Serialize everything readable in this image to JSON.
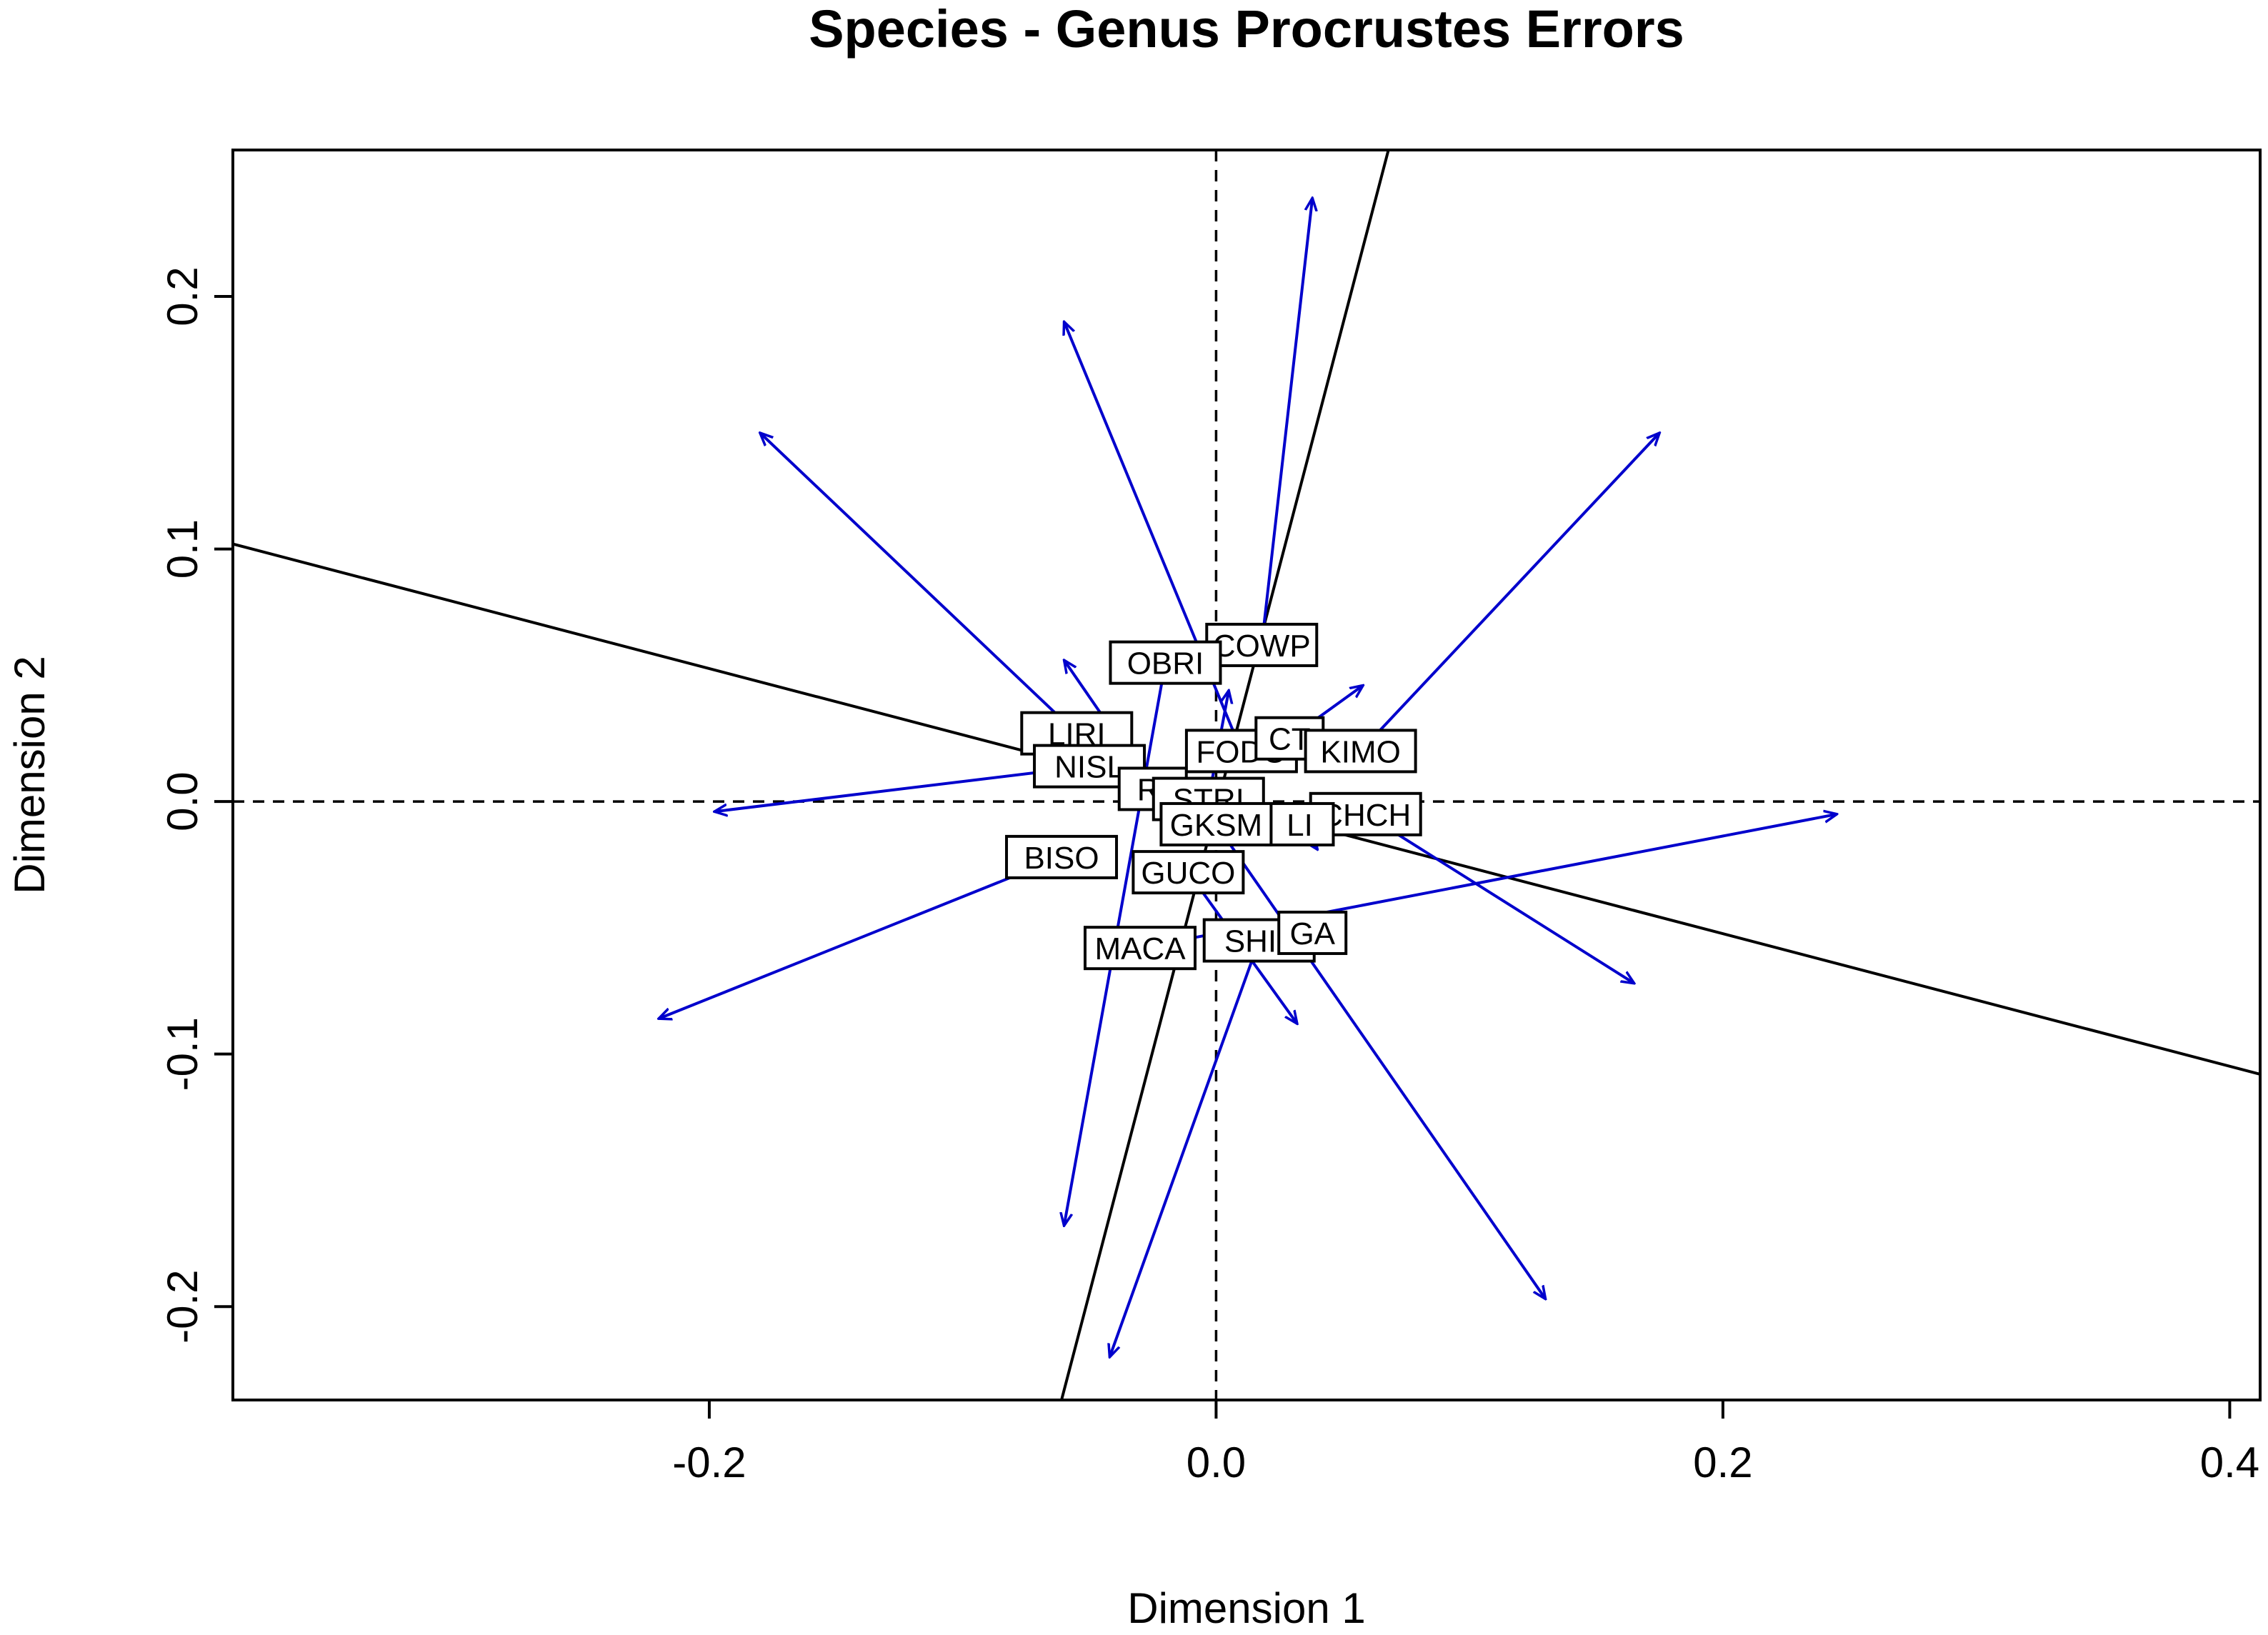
{
  "chart_data": {
    "type": "scatter",
    "title": "Species - Genus Procrustes Errors",
    "xlabel": "Dimension 1",
    "ylabel": "Dimension 2",
    "xlim": [
      -0.388,
      0.412
    ],
    "ylim": [
      -0.237,
      0.258
    ],
    "xticks": [
      {
        "value": -0.2,
        "label": "-0.2"
      },
      {
        "value": 0.0,
        "label": "0.0"
      },
      {
        "value": 0.2,
        "label": "0.2"
      },
      {
        "value": 0.4,
        "label": "0.4"
      }
    ],
    "yticks": [
      {
        "value": -0.2,
        "label": "-0.2"
      },
      {
        "value": -0.1,
        "label": "-0.1"
      },
      {
        "value": 0.0,
        "label": "0.0"
      },
      {
        "value": 0.1,
        "label": "0.1"
      },
      {
        "value": 0.2,
        "label": "0.2"
      }
    ],
    "colors": {
      "arrow": "#0000cc",
      "axis_line": "#000000",
      "reference_line": "#000000"
    },
    "rotation_lines": [
      {
        "x1": -0.388,
        "y1": 0.102,
        "x2": 0.412,
        "y2": -0.108
      },
      {
        "x1": -0.061,
        "y1": -0.237,
        "x2": 0.068,
        "y2": 0.258
      }
    ],
    "points": [
      {
        "label": "COWP",
        "x": 0.018,
        "y": 0.062,
        "ex": 0.038,
        "ey": 0.239
      },
      {
        "label": "OBRI",
        "x": -0.02,
        "y": 0.055,
        "ex": -0.06,
        "ey": -0.168
      },
      {
        "label": "LIRI",
        "x": -0.055,
        "y": 0.027,
        "ex": -0.18,
        "ey": 0.146
      },
      {
        "label": "NISL",
        "x": -0.05,
        "y": 0.014,
        "ex": -0.198,
        "ey": -0.004
      },
      {
        "label": "RI",
        "x": -0.025,
        "y": 0.005,
        "ex": -0.06,
        "ey": 0.056
      },
      {
        "label": "STRI",
        "x": -0.003,
        "y": 0.001,
        "ex": 0.005,
        "ey": 0.044
      },
      {
        "label": "FODO",
        "x": 0.01,
        "y": 0.02,
        "ex": -0.06,
        "ey": 0.19
      },
      {
        "label": "CT",
        "x": 0.029,
        "y": 0.025,
        "ex": 0.058,
        "ey": 0.046
      },
      {
        "label": "KIMO",
        "x": 0.057,
        "y": 0.02,
        "ex": 0.175,
        "ey": 0.146
      },
      {
        "label": "CHCH",
        "x": 0.059,
        "y": -0.005,
        "ex": 0.165,
        "ey": -0.072
      },
      {
        "label": "LI",
        "x": 0.033,
        "y": -0.009,
        "ex": 0.04,
        "ey": -0.019
      },
      {
        "label": "GKSM",
        "x": 0.0,
        "y": -0.009,
        "ex": 0.13,
        "ey": -0.197
      },
      {
        "label": "BISO",
        "x": -0.061,
        "y": -0.022,
        "ex": -0.22,
        "ey": -0.086
      },
      {
        "label": "GUCO",
        "x": -0.011,
        "y": -0.028,
        "ex": 0.032,
        "ey": -0.088
      },
      {
        "label": "MACA",
        "x": -0.03,
        "y": -0.058,
        "ex": 0.245,
        "ey": -0.005
      },
      {
        "label": "SHIL",
        "x": 0.017,
        "y": -0.055,
        "ex": -0.042,
        "ey": -0.22
      },
      {
        "label": "GA",
        "x": 0.038,
        "y": -0.052,
        "ex": 0.038,
        "ey": -0.052
      }
    ]
  }
}
